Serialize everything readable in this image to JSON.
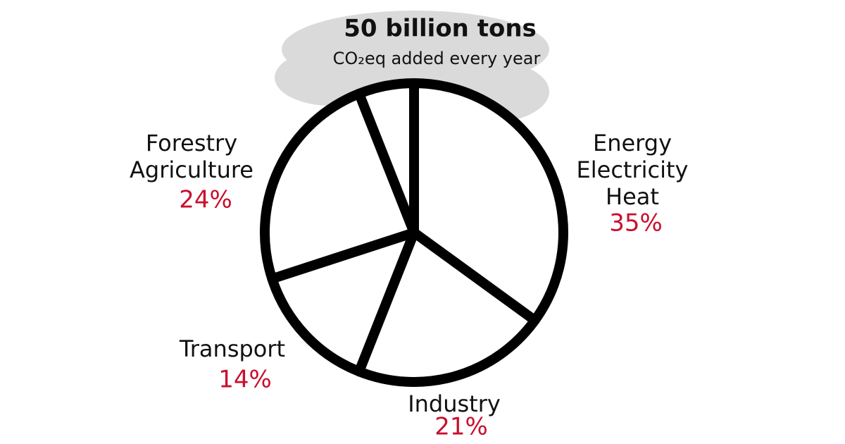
{
  "chart_data": {
    "type": "pie",
    "title": "50 billion tons",
    "subtitle": "CO₂eq added every year",
    "categories": [
      [
        "Energy",
        "Electricity",
        "Heat"
      ],
      [
        "Industry"
      ],
      [
        "Transport"
      ],
      [
        "Forestry",
        "Agriculture"
      ],
      null
    ],
    "values": [
      35,
      21,
      14,
      24,
      6
    ],
    "value_labels": [
      "35%",
      "21%",
      "14%",
      "24%",
      null
    ],
    "color": "#ffffff",
    "stroke_color": "#000000",
    "label_color": "#c8102e"
  }
}
